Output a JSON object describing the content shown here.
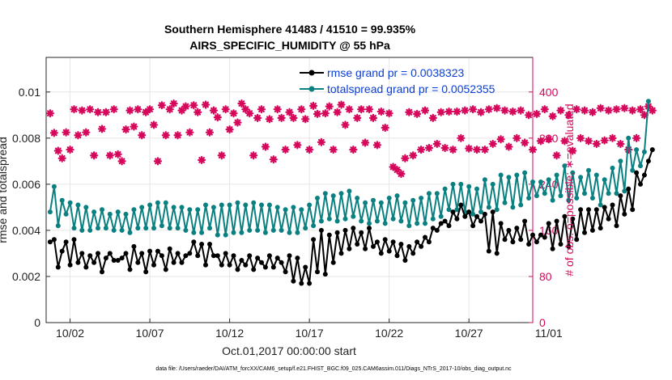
{
  "chart_data": {
    "type": "line",
    "title_line1": "Southern Hemisphere 41483 / 41510 = 99.935%",
    "title_line2": "AIRS_SPECIFIC_HUMIDITY @ 55 hPa",
    "xlabel": "Oct.01,2017 00:00:00 start",
    "ylabel_left": "rmse and totalspread",
    "ylabel_right": "# of obs: o=possible; ∗=evaluated",
    "footnote": "data file: /Users/raeder/DAI/ATM_forcXX/CAM6_setup/f.e21.FHIST_BGC.f09_025.CAM6assim.011/Diags_NTrS_2017-10/obs_diag_output.nc",
    "xlim": [
      0.5,
      31.0
    ],
    "ylim_left": [
      0,
      0.0115
    ],
    "ylim_right": [
      0,
      460
    ],
    "x_ticks": [
      2,
      7,
      12,
      17,
      22,
      27,
      32
    ],
    "x_tick_labels": [
      "10/02",
      "10/07",
      "10/12",
      "10/17",
      "10/22",
      "10/27",
      "11/01"
    ],
    "y_left_ticks": [
      0,
      0.002,
      0.004,
      0.006,
      0.008,
      0.01
    ],
    "y_left_tick_labels": [
      "0",
      "0.002",
      "0.004",
      "0.006",
      "0.008",
      "0.01"
    ],
    "y_right_ticks": [
      0,
      80,
      160,
      240,
      320,
      400
    ],
    "y_right_tick_labels": [
      "0",
      "80",
      "160",
      "240",
      "320",
      "400"
    ],
    "grid": true,
    "legend_position": "top-right",
    "x_start": 0.75,
    "x_step": 0.25,
    "series": [
      {
        "name": "rmse grand pr = 0.0038323",
        "color": "#000000",
        "values": [
          0.0035,
          0.0036,
          0.0024,
          0.0031,
          0.0035,
          0.0025,
          0.0036,
          0.0026,
          0.003,
          0.0024,
          0.0029,
          0.0026,
          0.003,
          0.0022,
          0.0028,
          0.003,
          0.0027,
          0.0027,
          0.0028,
          0.003,
          0.0023,
          0.0033,
          0.0026,
          0.003,
          0.0022,
          0.0031,
          0.0025,
          0.0031,
          0.0029,
          0.0023,
          0.0032,
          0.0026,
          0.003,
          0.0026,
          0.0029,
          0.003,
          0.0035,
          0.0029,
          0.0034,
          0.0025,
          0.0034,
          0.0029,
          0.0029,
          0.0025,
          0.003,
          0.0025,
          0.0029,
          0.0023,
          0.0027,
          0.0025,
          0.0029,
          0.0023,
          0.0028,
          0.0026,
          0.0024,
          0.0029,
          0.0024,
          0.0028,
          0.0026,
          0.0022,
          0.0029,
          0.0018,
          0.0028,
          0.0017,
          0.0024,
          0.0017,
          0.0036,
          0.0022,
          0.004,
          0.0021,
          0.0038,
          0.0026,
          0.0039,
          0.003,
          0.004,
          0.0032,
          0.0041,
          0.0034,
          0.0039,
          0.0032,
          0.0041,
          0.0033,
          0.0035,
          0.003,
          0.0036,
          0.0031,
          0.0035,
          0.0029,
          0.0034,
          0.0027,
          0.0033,
          0.003,
          0.0035,
          0.0033,
          0.0037,
          0.0035,
          0.0041,
          0.004,
          0.0043,
          0.0044,
          0.0042,
          0.0048,
          0.0045,
          0.0051,
          0.0046,
          0.0048,
          0.0042,
          0.0046,
          0.0044,
          0.0047,
          0.0031,
          0.0048,
          0.003,
          0.0043,
          0.0036,
          0.004,
          0.0035,
          0.0041,
          0.0036,
          0.0044,
          0.0034,
          0.0038,
          0.0035,
          0.0038,
          0.0037,
          0.0043,
          0.0032,
          0.0044,
          0.0034,
          0.0046,
          0.0033,
          0.0045,
          0.0036,
          0.0049,
          0.0039,
          0.0049,
          0.004,
          0.0049,
          0.0041,
          0.005,
          0.0045,
          0.0051,
          0.0042,
          0.0055,
          0.0047,
          0.0058,
          0.0049,
          0.0065,
          0.006,
          0.0064,
          0.007,
          0.0075
        ]
      },
      {
        "name": "totalspread grand pr = 0.0052355",
        "color": "#0a8080",
        "values": [
          0.0048,
          0.0059,
          0.0042,
          0.0053,
          0.0047,
          0.0052,
          0.0041,
          0.0051,
          0.004,
          0.005,
          0.004,
          0.0048,
          0.0041,
          0.0049,
          0.0041,
          0.0047,
          0.004,
          0.0048,
          0.004,
          0.0047,
          0.0039,
          0.0049,
          0.0041,
          0.005,
          0.0041,
          0.0051,
          0.0041,
          0.0052,
          0.0042,
          0.0052,
          0.0041,
          0.005,
          0.0041,
          0.005,
          0.004,
          0.0049,
          0.0039,
          0.0049,
          0.0039,
          0.0051,
          0.0041,
          0.005,
          0.0038,
          0.0051,
          0.0038,
          0.0051,
          0.0039,
          0.0052,
          0.0039,
          0.0051,
          0.004,
          0.0052,
          0.004,
          0.0051,
          0.0039,
          0.0051,
          0.004,
          0.005,
          0.004,
          0.0049,
          0.0039,
          0.005,
          0.0039,
          0.0049,
          0.0041,
          0.0051,
          0.0042,
          0.0054,
          0.0044,
          0.0056,
          0.0045,
          0.0055,
          0.0044,
          0.0056,
          0.0045,
          0.0057,
          0.0046,
          0.0054,
          0.0044,
          0.0052,
          0.0043,
          0.0053,
          0.0044,
          0.0052,
          0.0043,
          0.0054,
          0.0045,
          0.0055,
          0.0044,
          0.0052,
          0.0042,
          0.0053,
          0.0043,
          0.0054,
          0.0043,
          0.0056,
          0.0045,
          0.0056,
          0.0046,
          0.0058,
          0.0049,
          0.006,
          0.0049,
          0.006,
          0.0048,
          0.0059,
          0.0047,
          0.0058,
          0.0048,
          0.0062,
          0.005,
          0.006,
          0.0049,
          0.0064,
          0.0052,
          0.0063,
          0.005,
          0.0064,
          0.0051,
          0.0065,
          0.0054,
          0.0061,
          0.0055,
          0.0061,
          0.0056,
          0.0062,
          0.0053,
          0.0064,
          0.0055,
          0.0068,
          0.0053,
          0.0065,
          0.0054,
          0.0063,
          0.0056,
          0.0066,
          0.0054,
          0.0064,
          0.0051,
          0.0062,
          0.0056,
          0.0067,
          0.0056,
          0.007,
          0.0057,
          0.008,
          0.0066,
          0.0075,
          0.0068,
          0.0074,
          0.0096
        ]
      },
      {
        "name": "evaluated",
        "color": "#d6075b",
        "axis": "right",
        "values": [
          363,
          329,
          298,
          285,
          330,
          300,
          370,
          325,
          368,
          330,
          370,
          290,
          365,
          336,
          365,
          290,
          370,
          292,
          280,
          335,
          368,
          340,
          370,
          325,
          365,
          370,
          343,
          280,
          377,
          325,
          370,
          380,
          325,
          368,
          375,
          330,
          377,
          365,
          282,
          378,
          330,
          368,
          356,
          290,
          370,
          335,
          363,
          347,
          380,
          370,
          363,
          290,
          355,
          370,
          305,
          353,
          283,
          370,
          355,
          300,
          365,
          355,
          308,
          370,
          353,
          300,
          376,
          362,
          313,
          363,
          375,
          300,
          365,
          378,
          343,
          370,
          300,
          355,
          370,
          312,
          370,
          355,
          308,
          366,
          338,
          363,
          270,
          265,
          258,
          285,
          365,
          290,
          362,
          300,
          368,
          303,
          355,
          310,
          365,
          303,
          366,
          300,
          366,
          320,
          368,
          302,
          370,
          300,
          365,
          300,
          370,
          310,
          372,
          318,
          368,
          305,
          366,
          320,
          368,
          312,
          360,
          300,
          362,
          315,
          370,
          318,
          358,
          290,
          368,
          315,
          360,
          298,
          370,
          320,
          368,
          315,
          365,
          310,
          372,
          316,
          368,
          320,
          370,
          310,
          372,
          300,
          368,
          320,
          370,
          360,
          375,
          368
        ]
      }
    ]
  }
}
